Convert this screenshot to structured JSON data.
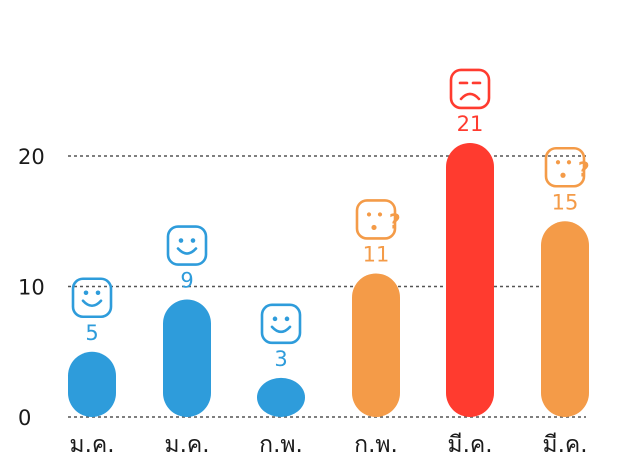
{
  "chart_data": {
    "type": "bar",
    "categories": [
      "ม.ค.",
      "ม.ค.",
      "ก.พ.",
      "ก.พ.",
      "มี.ค.",
      "มี.ค."
    ],
    "values": [
      5,
      9,
      3,
      11,
      21,
      15
    ],
    "data_labels": [
      "5",
      "9",
      "3",
      "11",
      "21",
      "15"
    ],
    "bar_colors": [
      "#2e9cdb",
      "#2e9cdb",
      "#2e9cdb",
      "#f49b48",
      "#ff3b2f",
      "#f49b48"
    ],
    "bar_icons": [
      "smile-icon",
      "smile-icon",
      "smile-icon",
      "thinking-icon",
      "frown-icon",
      "thinking-icon"
    ],
    "y_ticks": [
      0,
      10,
      20
    ],
    "y_tick_labels": [
      "0",
      "10",
      "20"
    ],
    "ylim": [
      0,
      21
    ],
    "grid": "dotted horizontal lines at y ticks",
    "legend": "none"
  }
}
